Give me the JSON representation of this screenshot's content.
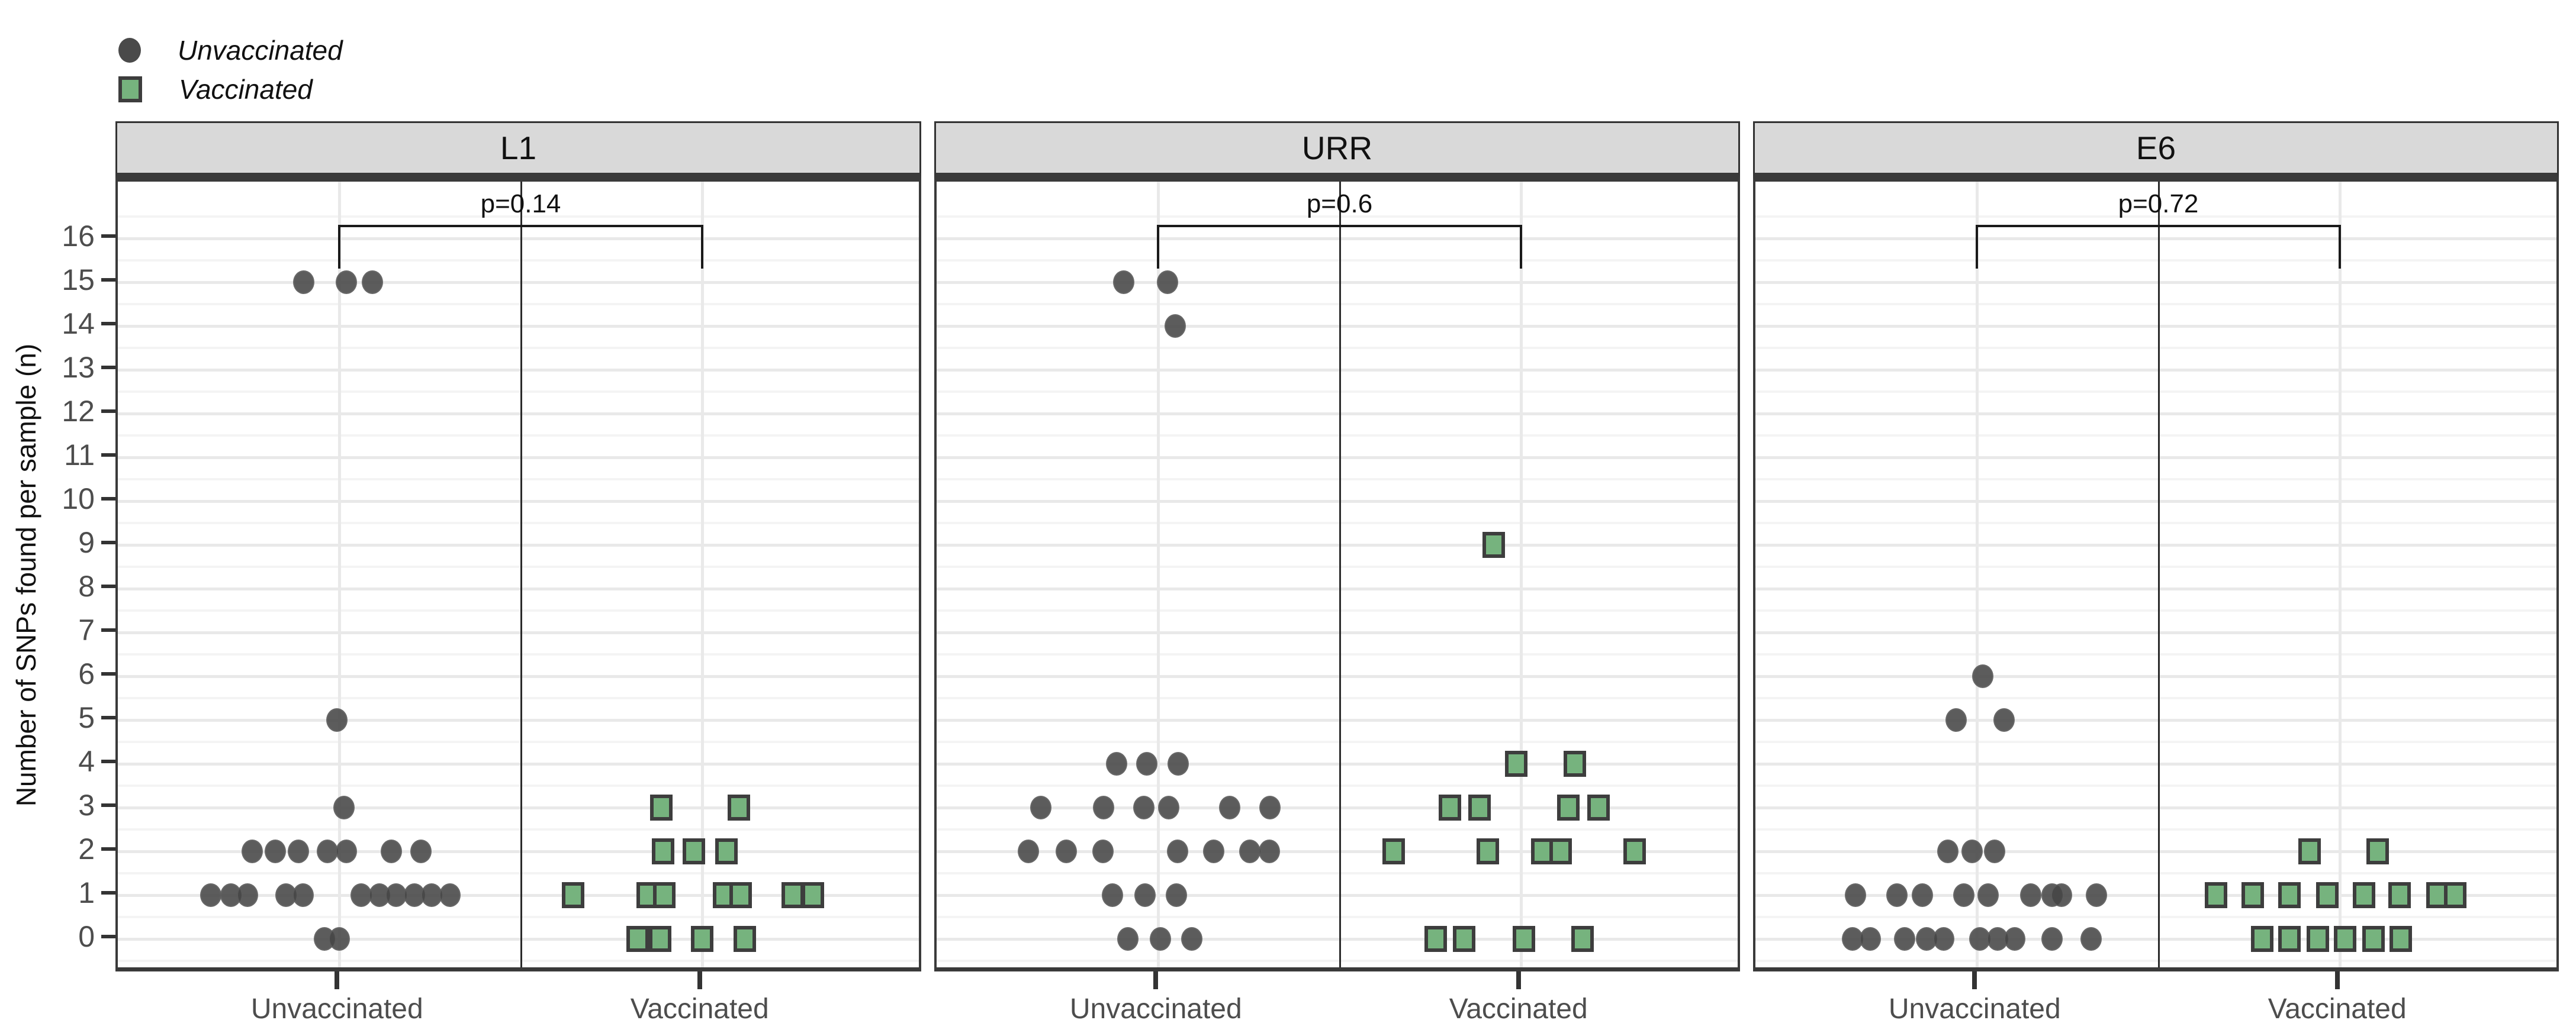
{
  "legend": {
    "items": [
      {
        "label": "Unvaccinated",
        "marker": "circle",
        "color": "#4a4a4a"
      },
      {
        "label": "Vaccinated",
        "marker": "square",
        "color": "#76b37e"
      }
    ]
  },
  "y_axis": {
    "title": "Number of SNPs found per sample (n)",
    "ticks": [
      0,
      1,
      2,
      3,
      4,
      5,
      6,
      7,
      8,
      9,
      10,
      11,
      12,
      13,
      14,
      15,
      16
    ]
  },
  "x_axis": {
    "categories": [
      "Unvaccinated",
      "Vaccinated"
    ]
  },
  "colors": {
    "unvaccinated_point": "#4a4a4a",
    "vaccinated_point_fill": "#76b37e",
    "vaccinated_point_border": "#3d3d3d",
    "strip_background": "#d9d9d9",
    "panel_border": "#3a3a3a",
    "grid_major": "#e9e9e9",
    "grid_minor": "#f4f4f4",
    "axis_text": "#4d4d4d",
    "label_text": "#111111"
  },
  "chart_data": {
    "type": "scatter",
    "subtype": "faceted jittered dot plot (beeswarm)",
    "title": "",
    "xlabel": "",
    "ylabel": "Number of SNPs found per sample (n)",
    "ylim": [
      0,
      16
    ],
    "yticks": [
      0,
      1,
      2,
      3,
      4,
      5,
      6,
      7,
      8,
      9,
      10,
      11,
      12,
      13,
      14,
      15,
      16
    ],
    "x_categories": [
      "Unvaccinated",
      "Vaccinated"
    ],
    "legend_position": "top-left",
    "grid": "horizontal major+minor gridlines; vertical major gridline at each group center; thin dark vertical separator at panel midline",
    "facets": [
      {
        "label": "L1",
        "p_value": "p=0.14",
        "groups": [
          {
            "name": "Unvaccinated",
            "marker": "circle",
            "n": 25,
            "points": {
              "15": [
                -60,
                12,
                56
              ],
              "5": [
                -4
              ],
              "3": [
                8
              ],
              "2": [
                -147,
                -108,
                -69,
                -20,
                12,
                88,
                138
              ],
              "1": [
                -217,
                -183,
                -155,
                -90,
                -61,
                37,
                68,
                96,
                127,
                156,
                187
              ],
              "0": [
                -25,
                0
              ]
            }
          },
          {
            "name": "Vaccinated",
            "marker": "square",
            "n": 16,
            "points": {
              "3": [
                -69,
                62
              ],
              "2": [
                -66,
                -14,
                41
              ],
              "1": [
                -218,
                -92,
                -64,
                37,
                65,
                153,
                187
              ],
              "0": [
                -109,
                -71,
                0,
                72
              ]
            }
          }
        ]
      },
      {
        "label": "URR",
        "p_value": "p=0.6",
        "groups": [
          {
            "name": "Unvaccinated",
            "marker": "circle",
            "n": 25,
            "points": {
              "15": [
                -58,
                16
              ],
              "14": [
                29
              ],
              "4": [
                -70,
                -19,
                34
              ],
              "3": [
                -198,
                -92,
                -24,
                18,
                121,
                189
              ],
              "2": [
                -219,
                -155,
                -93,
                33,
                94,
                155,
                188
              ],
              "1": [
                -77,
                -22,
                31
              ],
              "0": [
                -51,
                4,
                57
              ]
            }
          },
          {
            "name": "Vaccinated",
            "marker": "square",
            "n": 16,
            "points": {
              "9": [
                -46
              ],
              "4": [
                -8,
                91
              ],
              "3": [
                -120,
                -70,
                80,
                131
              ],
              "2": [
                -215,
                -56,
                36,
                67,
                192
              ],
              "0": [
                -144,
                -96,
                5,
                104
              ]
            }
          }
        ]
      },
      {
        "label": "E6",
        "p_value": "p=0.72",
        "groups": [
          {
            "name": "Unvaccinated",
            "marker": "circle",
            "n": 25,
            "points": {
              "6": [
                10
              ],
              "5": [
                -35,
                46
              ],
              "2": [
                -49,
                -8,
                30
              ],
              "1": [
                -205,
                -135,
                -92,
                -22,
                19,
                91,
                127,
                143,
                202
              ],
              "0": [
                -210,
                -180,
                -122,
                -85,
                -56,
                5,
                35,
                64,
                127,
                193
              ]
            }
          },
          {
            "name": "Vaccinated",
            "marker": "square",
            "n": 16,
            "points": {
              "2": [
                -51,
                64
              ],
              "1": [
                -209,
                -147,
                -85,
                -21,
                41,
                101,
                165,
                195
              ],
              "0": [
                -131,
                -85,
                -37,
                9,
                57,
                103
              ]
            }
          }
        ]
      }
    ]
  }
}
